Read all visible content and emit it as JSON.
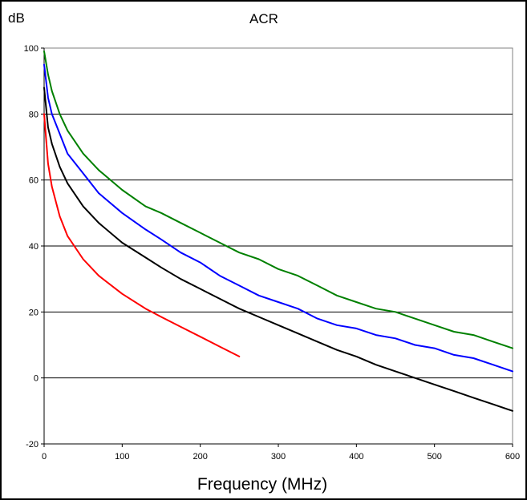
{
  "chart_data": {
    "type": "line",
    "title": "ACR",
    "ylabel": "dB",
    "xlabel": "Frequency (MHz)",
    "xlim": [
      0,
      600
    ],
    "ylim": [
      -20,
      100
    ],
    "xticks": [
      0,
      100,
      200,
      300,
      400,
      500,
      600
    ],
    "yticks": [
      -20,
      0,
      20,
      40,
      60,
      80,
      100
    ],
    "grid": "horizontal",
    "plot_background": "#ffffff",
    "series": [
      {
        "color": "#008000",
        "x": [
          0,
          5,
          10,
          20,
          30,
          50,
          70,
          100,
          130,
          150,
          175,
          200,
          225,
          250,
          275,
          300,
          325,
          350,
          375,
          400,
          425,
          450,
          475,
          500,
          525,
          550,
          575,
          600
        ],
        "y": [
          99,
          92,
          87,
          80,
          75,
          68,
          63,
          57,
          52,
          50,
          47,
          44,
          41,
          38,
          36,
          33,
          31,
          28,
          25,
          23,
          21,
          20,
          18,
          16,
          14,
          13,
          11,
          9
        ]
      },
      {
        "color": "#0000ff",
        "x": [
          0,
          5,
          10,
          20,
          30,
          50,
          70,
          100,
          130,
          150,
          175,
          200,
          225,
          250,
          275,
          300,
          325,
          350,
          375,
          400,
          425,
          450,
          475,
          500,
          525,
          550,
          575,
          600
        ],
        "y": [
          95,
          85,
          80,
          74,
          68,
          62,
          56,
          50,
          45,
          42,
          38,
          35,
          31,
          28,
          25,
          23,
          21,
          18,
          16,
          15,
          13,
          12,
          10,
          9,
          7,
          6,
          4,
          2
        ]
      },
      {
        "color": "#000000",
        "x": [
          0,
          5,
          10,
          20,
          30,
          50,
          70,
          100,
          130,
          150,
          175,
          200,
          225,
          250,
          275,
          300,
          325,
          350,
          375,
          400,
          425,
          450,
          475,
          500,
          525,
          550,
          575,
          600
        ],
        "y": [
          88,
          76,
          71,
          64,
          59,
          52,
          47,
          41,
          36.5,
          33.5,
          30,
          27,
          24,
          21,
          18.5,
          16,
          13.5,
          11,
          8.5,
          6.5,
          4,
          2,
          0,
          -2,
          -4,
          -6,
          -8,
          -10
        ]
      },
      {
        "color": "#ff0000",
        "x": [
          0,
          5,
          10,
          20,
          30,
          50,
          70,
          100,
          130,
          150,
          175,
          200,
          225,
          250
        ],
        "y": [
          80,
          65,
          58,
          49,
          43,
          36,
          31,
          25.5,
          21,
          18.5,
          15.5,
          12.5,
          9.5,
          6.5
        ]
      }
    ]
  }
}
